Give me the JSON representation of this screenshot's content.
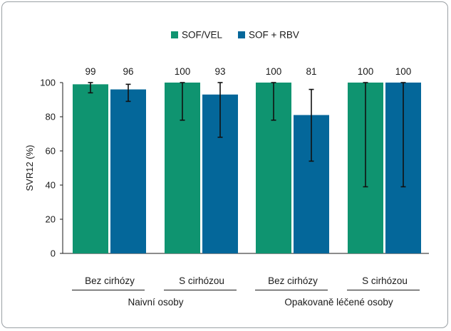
{
  "chart_data": {
    "type": "bar",
    "xlabel": "",
    "ylabel": "SVR12 (%)",
    "ylim": [
      0,
      100
    ],
    "yticks": [
      0,
      20,
      40,
      60,
      80,
      100
    ],
    "legend_position": "top-center",
    "grid": false,
    "series": [
      {
        "name": "SOF/VEL",
        "color": "#0f9470",
        "values": [
          99,
          100,
          100,
          100
        ],
        "error_low": [
          94,
          78,
          78,
          39
        ],
        "error_high": [
          100,
          100,
          100,
          100
        ]
      },
      {
        "name": "SOF + RBV",
        "color": "#04679a",
        "values": [
          96,
          93,
          81,
          100
        ],
        "error_low": [
          89,
          68,
          54,
          39
        ],
        "error_high": [
          99,
          100,
          96,
          100
        ]
      }
    ],
    "categories": [
      "Bez cirhózy",
      "S cirhózou",
      "Bez cirhózy",
      "S cirhózou"
    ],
    "groups": [
      {
        "label": "Naivní osoby",
        "categories": [
          0,
          1
        ]
      },
      {
        "label": "Opakovaně léčené osoby",
        "categories": [
          2,
          3
        ]
      }
    ]
  }
}
